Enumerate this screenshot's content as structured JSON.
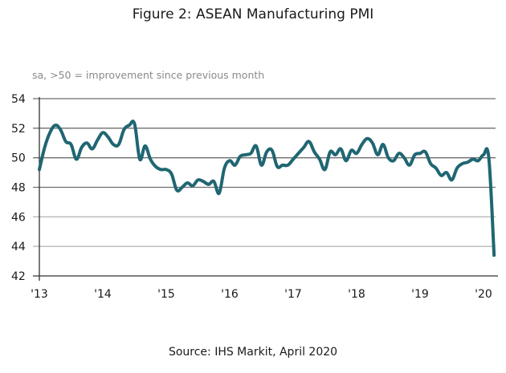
{
  "chart_data": {
    "type": "line",
    "title": "Figure 2: ASEAN Manufacturing PMI",
    "subtitle": "sa, >50 = improvement since previous month",
    "source": "Source: IHS Markit, April 2020",
    "xlabel": "",
    "ylabel": "",
    "ylim": [
      42,
      54
    ],
    "yticks": [
      "54",
      "52",
      "50",
      "48",
      "46",
      "44",
      "42"
    ],
    "ytick_values": [
      54,
      52,
      50,
      48,
      46,
      44,
      42
    ],
    "xticks": [
      "'13",
      "'14",
      "'15",
      "'16",
      "'17",
      "'18",
      "'19",
      "'20"
    ],
    "x_start": "2013-01",
    "x_end": "2020-03",
    "frequency": "monthly",
    "grid": true,
    "line_color": "#1f6672",
    "series": [
      {
        "name": "ASEAN Manufacturing PMI",
        "values": [
          49.2,
          50.7,
          51.7,
          52.2,
          51.9,
          51.1,
          50.9,
          49.9,
          50.7,
          51.0,
          50.6,
          51.2,
          51.7,
          51.4,
          50.9,
          50.9,
          51.9,
          52.2,
          52.3,
          49.9,
          50.8,
          49.9,
          49.4,
          49.2,
          49.2,
          48.9,
          47.8,
          48.0,
          48.3,
          48.1,
          48.5,
          48.4,
          48.2,
          48.4,
          47.6,
          49.3,
          49.8,
          49.5,
          50.1,
          50.2,
          50.3,
          50.8,
          49.5,
          50.4,
          50.5,
          49.4,
          49.5,
          49.5,
          49.9,
          50.3,
          50.7,
          51.1,
          50.4,
          49.9,
          49.2,
          50.4,
          50.2,
          50.6,
          49.8,
          50.5,
          50.3,
          50.9,
          51.3,
          51.0,
          50.2,
          50.9,
          50.0,
          49.8,
          50.3,
          50.0,
          49.5,
          50.2,
          50.3,
          50.4,
          49.6,
          49.3,
          48.8,
          49.0,
          48.5,
          49.3,
          49.6,
          49.7,
          49.9,
          49.8,
          50.2,
          50.0,
          43.4
        ]
      }
    ]
  }
}
